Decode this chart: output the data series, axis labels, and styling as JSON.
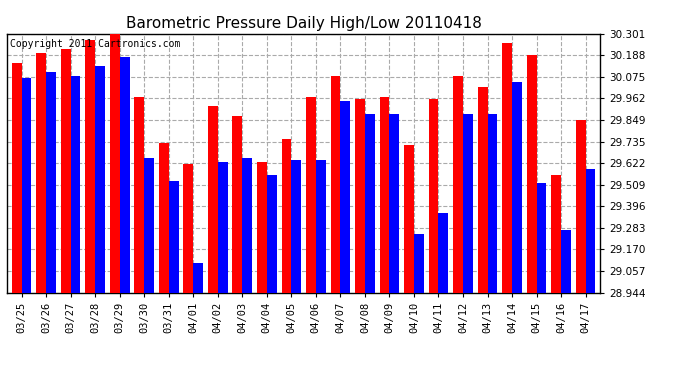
{
  "title": "Barometric Pressure Daily High/Low 20110418",
  "copyright": "Copyright 2011 Cartronics.com",
  "dates": [
    "03/25",
    "03/26",
    "03/27",
    "03/28",
    "03/29",
    "03/30",
    "03/31",
    "04/01",
    "04/02",
    "04/03",
    "04/04",
    "04/05",
    "04/06",
    "04/07",
    "04/08",
    "04/09",
    "04/10",
    "04/11",
    "04/12",
    "04/13",
    "04/14",
    "04/15",
    "04/16",
    "04/17"
  ],
  "highs": [
    30.15,
    30.2,
    30.22,
    30.27,
    30.3,
    29.97,
    29.73,
    29.62,
    29.92,
    29.87,
    29.63,
    29.75,
    29.97,
    30.08,
    29.96,
    29.97,
    29.72,
    29.96,
    30.08,
    30.02,
    30.25,
    30.19,
    29.56,
    29.85
  ],
  "lows": [
    30.07,
    30.1,
    30.08,
    30.13,
    30.18,
    29.65,
    29.53,
    29.1,
    29.63,
    29.65,
    29.56,
    29.64,
    29.64,
    29.95,
    29.88,
    29.88,
    29.25,
    29.36,
    29.88,
    29.88,
    30.05,
    29.52,
    29.27,
    29.59
  ],
  "ylim_min": 28.944,
  "ylim_max": 30.301,
  "yticks": [
    28.944,
    29.057,
    29.17,
    29.283,
    29.396,
    29.509,
    29.622,
    29.735,
    29.849,
    29.962,
    30.075,
    30.188,
    30.301
  ],
  "bar_width": 0.4,
  "high_color": "#FF0000",
  "low_color": "#0000FF",
  "bg_color": "#FFFFFF",
  "plot_bg_color": "#FFFFFF",
  "grid_color": "#AAAAAA",
  "title_fontsize": 11,
  "tick_fontsize": 7.5,
  "copyright_fontsize": 7
}
